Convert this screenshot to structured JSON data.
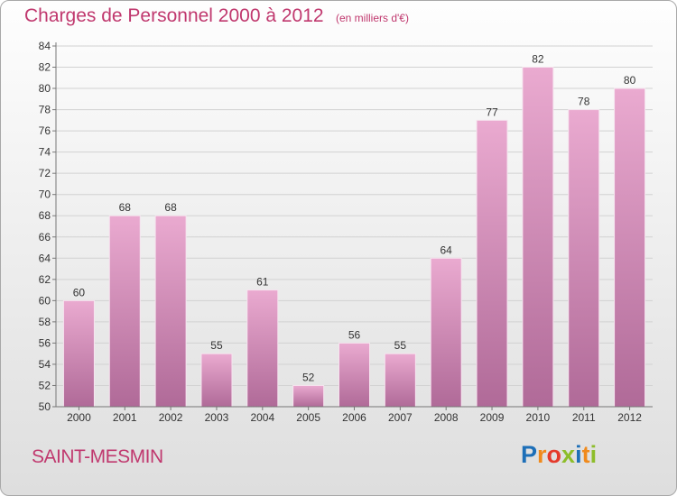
{
  "title": "Charges de Personnel 2000 à 2012",
  "subtitle": "(en milliers d'€)",
  "place": "SAINT-MESMIN",
  "logo": {
    "text": "Proxiti",
    "letters": [
      {
        "ch": "P",
        "color": "#1d6fb8"
      },
      {
        "ch": "r",
        "color": "#f08a1c"
      },
      {
        "ch": "o",
        "color": "#e43a2b"
      },
      {
        "ch": "x",
        "color": "#8dbd2a"
      },
      {
        "ch": "i",
        "color": "#1d6fb8"
      },
      {
        "ch": "t",
        "color": "#f08a1c"
      },
      {
        "ch": "i",
        "color": "#8dbd2a"
      }
    ]
  },
  "colors": {
    "accent": "#c0386e",
    "bar_top": "#eaaad0",
    "bar_bottom": "#b06a98"
  },
  "chart_data": {
    "type": "bar",
    "categories": [
      "2000",
      "2001",
      "2002",
      "2003",
      "2004",
      "2005",
      "2006",
      "2007",
      "2008",
      "2009",
      "2010",
      "2011",
      "2012"
    ],
    "values": [
      60,
      68,
      68,
      55,
      61,
      52,
      56,
      55,
      64,
      77,
      82,
      78,
      80
    ],
    "ylim": [
      50,
      84
    ],
    "yticks": [
      50,
      52,
      54,
      56,
      58,
      60,
      62,
      64,
      66,
      68,
      70,
      72,
      74,
      76,
      78,
      80,
      82,
      84
    ],
    "xlabel": "",
    "ylabel": "",
    "grid": "horizontal"
  }
}
